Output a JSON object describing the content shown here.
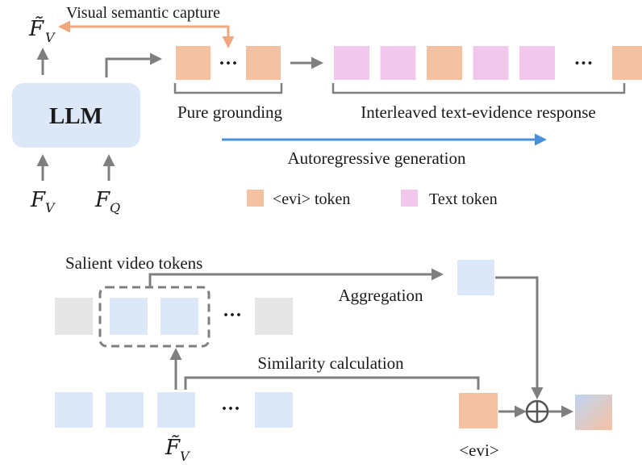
{
  "colors": {
    "evi_token": "#F5C1A3",
    "text_token": "#F1C8EB",
    "llm_box": "#DCE8F7",
    "video_token": "#DCE8F7",
    "gray_token": "#E6E6E6",
    "capture_arrow": "#F0A77E",
    "autoreg_arrow": "#4A90D9",
    "connector": "#7F7F7F"
  },
  "top": {
    "llm_label": "LLM",
    "capture_label": "Visual semantic capture",
    "f_tilde_v": "F̃",
    "f_tilde_v_sub": "V",
    "f_v": "F",
    "f_v_sub": "V",
    "f_q": "F",
    "f_q_sub": "Q",
    "grounding_label": "Pure grounding",
    "response_label": "Interleaved text-evidence response",
    "autoregressive_label": "Autoregressive generation",
    "ellipsis": "···",
    "legend": [
      {
        "label": "<evi> token",
        "kind": "evi"
      },
      {
        "label": "Text token",
        "kind": "text"
      }
    ],
    "response_sequence": [
      "text",
      "text",
      "evi",
      "text",
      "text",
      "ellipsis",
      "evi",
      "text"
    ]
  },
  "bottom": {
    "salient_label": "Salient video tokens",
    "aggregation_label": "Aggregation",
    "similarity_label": "Similarity calculation",
    "evi_label": "<evi>",
    "plus_symbol": "⊕",
    "f_tilde_v": "F̃",
    "f_tilde_v_sub": "V",
    "ellipsis": "···"
  }
}
